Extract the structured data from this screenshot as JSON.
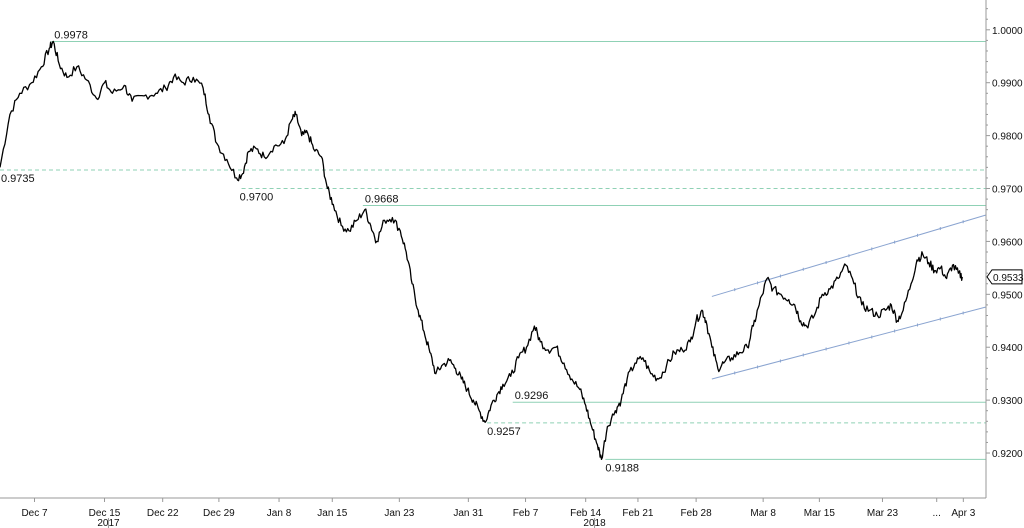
{
  "chart_data": {
    "type": "line",
    "title": "",
    "xlabel": "",
    "ylabel": "",
    "ylim": [
      0.9115,
      1.0045
    ],
    "y_ticks": [
      "1.0000",
      "0.9900",
      "0.9800",
      "0.9700",
      "0.9600",
      "0.9500",
      "0.9400",
      "0.9300",
      "0.9200"
    ],
    "x_ticks": [
      {
        "label": "Dec 7",
        "t": 0.035
      },
      {
        "label": "Dec 15",
        "t": 0.106
      },
      {
        "label": "Dec 22",
        "t": 0.165
      },
      {
        "label": "Dec 29",
        "t": 0.222
      },
      {
        "label": "Jan 8",
        "t": 0.283
      },
      {
        "label": "Jan 15",
        "t": 0.337
      },
      {
        "label": "Jan 23",
        "t": 0.405
      },
      {
        "label": "Jan 31",
        "t": 0.475
      },
      {
        "label": "Feb 7",
        "t": 0.533
      },
      {
        "label": "Feb 14",
        "t": 0.594
      },
      {
        "label": "Feb 21",
        "t": 0.647
      },
      {
        "label": "Feb 28",
        "t": 0.706
      },
      {
        "label": "Mar 8",
        "t": 0.774
      },
      {
        "label": "Mar 15",
        "t": 0.831
      },
      {
        "label": "Mar 23",
        "t": 0.895
      },
      {
        "label": "...",
        "t": 0.95
      },
      {
        "label": "Apr 3",
        "t": 0.977
      }
    ],
    "year_labels": [
      {
        "label": "2017",
        "t": 0.11
      },
      {
        "label": "2018",
        "t": 0.603
      }
    ],
    "series": [
      {
        "color": "#000000",
        "points": [
          [
            0.0,
            0.974
          ],
          [
            0.01,
            0.984
          ],
          [
            0.02,
            0.988
          ],
          [
            0.032,
            0.99
          ],
          [
            0.042,
            0.993
          ],
          [
            0.05,
            0.9965
          ],
          [
            0.054,
            0.9978
          ],
          [
            0.06,
            0.9935
          ],
          [
            0.068,
            0.991
          ],
          [
            0.078,
            0.993
          ],
          [
            0.088,
            0.9905
          ],
          [
            0.098,
            0.987
          ],
          [
            0.106,
            0.99
          ],
          [
            0.114,
            0.988
          ],
          [
            0.126,
            0.9895
          ],
          [
            0.134,
            0.9865
          ],
          [
            0.146,
            0.9875
          ],
          [
            0.158,
            0.988
          ],
          [
            0.168,
            0.989
          ],
          [
            0.176,
            0.991
          ],
          [
            0.186,
            0.99
          ],
          [
            0.196,
            0.991
          ],
          [
            0.206,
            0.989
          ],
          [
            0.212,
            0.984
          ],
          [
            0.22,
            0.9785
          ],
          [
            0.23,
            0.9755
          ],
          [
            0.24,
            0.972
          ],
          [
            0.246,
            0.9728
          ],
          [
            0.252,
            0.977
          ],
          [
            0.26,
            0.9775
          ],
          [
            0.268,
            0.976
          ],
          [
            0.278,
            0.978
          ],
          [
            0.288,
            0.9785
          ],
          [
            0.296,
            0.983
          ],
          [
            0.3,
            0.984
          ],
          [
            0.306,
            0.98
          ],
          [
            0.312,
            0.9805
          ],
          [
            0.318,
            0.9775
          ],
          [
            0.326,
            0.976
          ],
          [
            0.332,
            0.97
          ],
          [
            0.338,
            0.967
          ],
          [
            0.346,
            0.963
          ],
          [
            0.354,
            0.962
          ],
          [
            0.362,
            0.964
          ],
          [
            0.37,
            0.966
          ],
          [
            0.376,
            0.963
          ],
          [
            0.382,
            0.96
          ],
          [
            0.39,
            0.964
          ],
          [
            0.398,
            0.9645
          ],
          [
            0.406,
            0.962
          ],
          [
            0.412,
            0.958
          ],
          [
            0.418,
            0.952
          ],
          [
            0.424,
            0.947
          ],
          [
            0.43,
            0.943
          ],
          [
            0.436,
            0.939
          ],
          [
            0.442,
            0.935
          ],
          [
            0.448,
            0.9365
          ],
          [
            0.456,
            0.9375
          ],
          [
            0.462,
            0.936
          ],
          [
            0.468,
            0.934
          ],
          [
            0.474,
            0.932
          ],
          [
            0.48,
            0.93
          ],
          [
            0.486,
            0.928
          ],
          [
            0.492,
            0.9258
          ],
          [
            0.498,
            0.929
          ],
          [
            0.504,
            0.931
          ],
          [
            0.51,
            0.933
          ],
          [
            0.518,
            0.9345
          ],
          [
            0.526,
            0.938
          ],
          [
            0.534,
            0.94
          ],
          [
            0.542,
            0.944
          ],
          [
            0.548,
            0.941
          ],
          [
            0.556,
            0.9395
          ],
          [
            0.564,
            0.94
          ],
          [
            0.572,
            0.937
          ],
          [
            0.58,
            0.934
          ],
          [
            0.588,
            0.932
          ],
          [
            0.594,
            0.929
          ],
          [
            0.6,
            0.925
          ],
          [
            0.606,
            0.9215
          ],
          [
            0.61,
            0.9188
          ],
          [
            0.616,
            0.925
          ],
          [
            0.624,
            0.928
          ],
          [
            0.63,
            0.93
          ],
          [
            0.636,
            0.934
          ],
          [
            0.644,
            0.937
          ],
          [
            0.652,
            0.938
          ],
          [
            0.66,
            0.935
          ],
          [
            0.668,
            0.934
          ],
          [
            0.676,
            0.9365
          ],
          [
            0.684,
            0.939
          ],
          [
            0.692,
            0.9395
          ],
          [
            0.7,
            0.941
          ],
          [
            0.706,
            0.945
          ],
          [
            0.712,
            0.947
          ],
          [
            0.716,
            0.945
          ],
          [
            0.722,
            0.94
          ],
          [
            0.728,
            0.936
          ],
          [
            0.734,
            0.937
          ],
          [
            0.742,
            0.938
          ],
          [
            0.75,
            0.939
          ],
          [
            0.758,
            0.94
          ],
          [
            0.764,
            0.944
          ],
          [
            0.77,
            0.948
          ],
          [
            0.778,
            0.953
          ],
          [
            0.784,
            0.951
          ],
          [
            0.792,
            0.95
          ],
          [
            0.8,
            0.949
          ],
          [
            0.806,
            0.948
          ],
          [
            0.812,
            0.945
          ],
          [
            0.818,
            0.944
          ],
          [
            0.826,
            0.946
          ],
          [
            0.834,
            0.95
          ],
          [
            0.842,
            0.951
          ],
          [
            0.85,
            0.953
          ],
          [
            0.858,
            0.9555
          ],
          [
            0.866,
            0.952
          ],
          [
            0.874,
            0.948
          ],
          [
            0.882,
            0.947
          ],
          [
            0.89,
            0.946
          ],
          [
            0.898,
            0.947
          ],
          [
            0.904,
            0.948
          ],
          [
            0.91,
            0.945
          ],
          [
            0.916,
            0.947
          ],
          [
            0.924,
            0.952
          ],
          [
            0.93,
            0.9565
          ],
          [
            0.936,
            0.9575
          ],
          [
            0.942,
            0.956
          ],
          [
            0.948,
            0.9545
          ],
          [
            0.954,
            0.955
          ],
          [
            0.96,
            0.953
          ],
          [
            0.966,
            0.9555
          ],
          [
            0.972,
            0.954
          ],
          [
            0.976,
            0.9533
          ]
        ]
      }
    ],
    "levels": [
      {
        "value": 0.9978,
        "label": "0.9978",
        "style": "solid",
        "t_start": 0.052,
        "label_t": 0.055,
        "label_pos": "above"
      },
      {
        "value": 0.9735,
        "label": "0.9735",
        "style": "dashed",
        "t_start": 0.0,
        "label_t": 0.001,
        "label_pos": "below"
      },
      {
        "value": 0.97,
        "label": "0.9700",
        "style": "dashed",
        "t_start": 0.245,
        "label_t": 0.243,
        "label_pos": "below"
      },
      {
        "value": 0.9668,
        "label": "0.9668",
        "style": "solid",
        "t_start": 0.368,
        "label_t": 0.37,
        "label_pos": "above"
      },
      {
        "value": 0.9296,
        "label": "0.9296",
        "style": "solid",
        "t_start": 0.52,
        "label_t": 0.522,
        "label_pos": "above"
      },
      {
        "value": 0.9257,
        "label": "0.9257",
        "style": "dashed",
        "t_start": 0.494,
        "label_t": 0.494,
        "label_pos": "below"
      },
      {
        "value": 0.9188,
        "label": "0.9188",
        "style": "solid",
        "t_start": 0.614,
        "label_t": 0.614,
        "label_pos": "below"
      }
    ],
    "channel": [
      {
        "t1": 0.722,
        "y1": 0.9496,
        "t2": 1.0,
        "y2": 0.965
      },
      {
        "t1": 0.722,
        "y1": 0.934,
        "t2": 1.0,
        "y2": 0.9476
      }
    ],
    "last_value": {
      "label": "0.9533",
      "value": 0.9533
    },
    "colors": {
      "price": "#000000",
      "level_line": "#8fd1b5",
      "channel_line": "#8aa4d0",
      "axis": "#999999"
    },
    "grid": false
  }
}
